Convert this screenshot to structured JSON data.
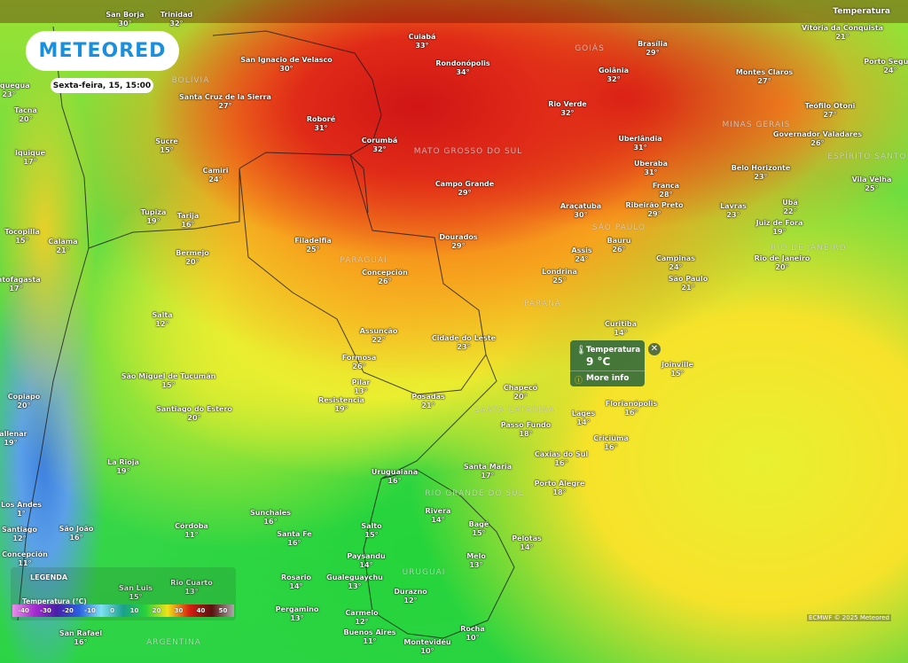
{
  "brand": {
    "logo": "METEORED",
    "date": "Sexta-feira, 15, 15:00"
  },
  "layer_label": "Temperatura",
  "popup": {
    "title": "Temperatura",
    "value": "9 °C",
    "more": "More info",
    "icon": "thermometer-icon",
    "close_icon": "close-icon",
    "more_icon": "info-icon"
  },
  "legend": {
    "title": "LEGENDA",
    "subtitle": "Temperatura (°C)",
    "ticks": [
      "-40",
      "-30",
      "-20",
      "-10",
      "0",
      "10",
      "20",
      "30",
      "40",
      "50"
    ],
    "colors": [
      "#e98fe8",
      "#a72bd0",
      "#4a1ea8",
      "#2a5fe0",
      "#7fe0f2",
      "#1aa08c",
      "#27d23a",
      "#f2e21a",
      "#d71d10",
      "#5a1010",
      "#aaaaaa"
    ]
  },
  "credit": "ECMWF © 2025 Meteored",
  "regions": [
    {
      "name": "BOLÍVIA"
    },
    {
      "name": "GOIÁS"
    },
    {
      "name": "MINAS GERAIS"
    },
    {
      "name": "MATO GROSSO DO SUL"
    },
    {
      "name": "ESPÍRITO SANTO"
    },
    {
      "name": "SÃO PAULO"
    },
    {
      "name": "RIO DE JANEIRO"
    },
    {
      "name": "PARAGUAI"
    },
    {
      "name": "PARANÁ"
    },
    {
      "name": "SANTA CATARINA"
    },
    {
      "name": "RIO GRANDE DO SUL"
    },
    {
      "name": "URUGUAI"
    },
    {
      "name": "ARGENTINA"
    }
  ],
  "cities": [
    {
      "name": "San Borja",
      "temp": "30°"
    },
    {
      "name": "Trinidad",
      "temp": "32°"
    },
    {
      "name": "Vitória da Conquista",
      "temp": "21°"
    },
    {
      "name": "Cuiabá",
      "temp": "33°"
    },
    {
      "name": "Brasília",
      "temp": "29°"
    },
    {
      "name": "Porto Seguro",
      "temp": "24°"
    },
    {
      "name": "San Ignacio de Velasco",
      "temp": "30°"
    },
    {
      "name": "Rondonópolis",
      "temp": "34°"
    },
    {
      "name": "Goiânia",
      "temp": "32°"
    },
    {
      "name": "Montes Claros",
      "temp": "27°"
    },
    {
      "name": "Santa Cruz de la Sierra",
      "temp": "27°"
    },
    {
      "name": "Rio Verde",
      "temp": "32°"
    },
    {
      "name": "Teófilo Otoni",
      "temp": "27°"
    },
    {
      "name": "Roboré",
      "temp": "31°"
    },
    {
      "name": "Governador Valadares",
      "temp": "26°"
    },
    {
      "name": "Corumbá",
      "temp": "32°"
    },
    {
      "name": "Uberlândia",
      "temp": "31°"
    },
    {
      "name": "Sucre",
      "temp": "15°"
    },
    {
      "name": "Iquique",
      "temp": "17°"
    },
    {
      "name": "Uberaba",
      "temp": "31°"
    },
    {
      "name": "Belo Horizonte",
      "temp": "23°"
    },
    {
      "name": "Camiri",
      "temp": "24°"
    },
    {
      "name": "Campo Grande",
      "temp": "29°"
    },
    {
      "name": "Franca",
      "temp": "28°"
    },
    {
      "name": "Vila Velha",
      "temp": "25°"
    },
    {
      "name": "Araçatuba",
      "temp": "30°"
    },
    {
      "name": "Ribeirão Preto",
      "temp": "29°"
    },
    {
      "name": "Lavras",
      "temp": "23°"
    },
    {
      "name": "Ubá",
      "temp": "22°"
    },
    {
      "name": "Tupiza",
      "temp": "19°"
    },
    {
      "name": "Tarija",
      "temp": "16°"
    },
    {
      "name": "Juiz de Fora",
      "temp": "19°"
    },
    {
      "name": "Tocopilla",
      "temp": "15°"
    },
    {
      "name": "Calama",
      "temp": "21°"
    },
    {
      "name": "Filadelfia",
      "temp": "25°"
    },
    {
      "name": "Dourados",
      "temp": "29°"
    },
    {
      "name": "Bauru",
      "temp": "26°"
    },
    {
      "name": "Bermejo",
      "temp": "20°"
    },
    {
      "name": "Assis",
      "temp": "24°"
    },
    {
      "name": "Campinas",
      "temp": "24°"
    },
    {
      "name": "Rio de Janeiro",
      "temp": "20°"
    },
    {
      "name": "Antofagasta",
      "temp": "17°"
    },
    {
      "name": "Concepción",
      "temp": "26°"
    },
    {
      "name": "Londrina",
      "temp": "25°"
    },
    {
      "name": "São Paulo",
      "temp": "21°"
    },
    {
      "name": "Salta",
      "temp": "12°"
    },
    {
      "name": "Curitiba",
      "temp": "14°"
    },
    {
      "name": "Assunção",
      "temp": "22°"
    },
    {
      "name": "Cidade do Leste",
      "temp": "23°"
    },
    {
      "name": "Formosa",
      "temp": "26°"
    },
    {
      "name": "São Miguel de Tucumán",
      "temp": "15°"
    },
    {
      "name": "Pilar",
      "temp": "13°"
    },
    {
      "name": "Copiapo",
      "temp": "20°"
    },
    {
      "name": "Chapecó",
      "temp": "20°"
    },
    {
      "name": "Joinville",
      "temp": "15°"
    },
    {
      "name": "Resistencia",
      "temp": "19°"
    },
    {
      "name": "Posadas",
      "temp": "21°"
    },
    {
      "name": "Santiago do Estero",
      "temp": "20°"
    },
    {
      "name": "Lages",
      "temp": "14°"
    },
    {
      "name": "Florianópolis",
      "temp": "16°"
    },
    {
      "name": "Vallenar",
      "temp": "19°"
    },
    {
      "name": "Passo Fundo",
      "temp": "18°"
    },
    {
      "name": "Criciúma",
      "temp": "16°"
    },
    {
      "name": "Caxias do Sul",
      "temp": "16°"
    },
    {
      "name": "La Rioja",
      "temp": "19°"
    },
    {
      "name": "Uruguaiana",
      "temp": "16°"
    },
    {
      "name": "Santa Maria",
      "temp": "17°"
    },
    {
      "name": "Porto Alegre",
      "temp": "18°"
    },
    {
      "name": "Sunchales",
      "temp": "16°"
    },
    {
      "name": "Rivera",
      "temp": "14°"
    },
    {
      "name": "Córdoba",
      "temp": "11°"
    },
    {
      "name": "São João",
      "temp": "16°"
    },
    {
      "name": "Santa Fe",
      "temp": "16°"
    },
    {
      "name": "Bagé",
      "temp": "15°"
    },
    {
      "name": "Salto",
      "temp": "15°"
    },
    {
      "name": "Pelotas",
      "temp": "14°"
    },
    {
      "name": "Paysandu",
      "temp": "14°"
    },
    {
      "name": "Melo",
      "temp": "13°"
    },
    {
      "name": "Rosario",
      "temp": "14°"
    },
    {
      "name": "Gualeguaychu",
      "temp": "13°"
    },
    {
      "name": "Rio Cuarto",
      "temp": "13°"
    },
    {
      "name": "San Luis",
      "temp": "15°"
    },
    {
      "name": "Pergamino",
      "temp": "13°"
    },
    {
      "name": "Carmelo",
      "temp": "12°"
    },
    {
      "name": "Durazno",
      "temp": "12°"
    },
    {
      "name": "Buenos Aires",
      "temp": "11°"
    },
    {
      "name": "Montevidéu",
      "temp": "10°"
    },
    {
      "name": "Rocha",
      "temp": "10°"
    },
    {
      "name": "San Rafael",
      "temp": "16°"
    },
    {
      "name": "Moquegua",
      "temp": "23°"
    },
    {
      "name": "Tacna",
      "temp": "20°"
    },
    {
      "name": "Los Andes",
      "temp": "1°"
    },
    {
      "name": "Santiago",
      "temp": "12°"
    },
    {
      "name": "Concepción",
      "temp": "11°"
    }
  ]
}
